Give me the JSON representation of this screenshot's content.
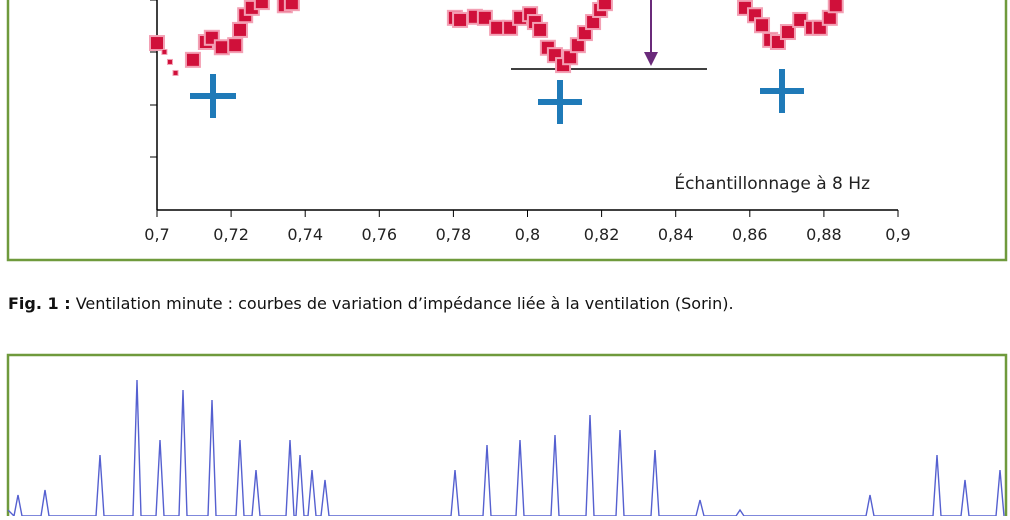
{
  "chart_data": {
    "type": "scatter",
    "annotation": "Échantillonnage à 8 Hz",
    "x": [
      0.7,
      0.702,
      0.7035,
      0.705,
      0.7097,
      0.7132,
      0.7148,
      0.7175,
      0.7211,
      0.7224,
      0.7238,
      0.7256,
      0.7283,
      0.7345,
      0.7364,
      0.7804,
      0.7818,
      0.7858,
      0.7885,
      0.7918,
      0.7953,
      0.798,
      0.8007,
      0.802,
      0.8034,
      0.8055,
      0.8074,
      0.8096,
      0.8115,
      0.8136,
      0.8155,
      0.8177,
      0.8196,
      0.8209,
      0.8587,
      0.8614,
      0.8633,
      0.8655,
      0.8676,
      0.8703,
      0.8736,
      0.8768,
      0.8789,
      0.8816,
      0.8832
    ],
    "y": [
      3.18,
      3.01,
      2.82,
      2.61,
      2.86,
      3.2,
      3.28,
      3.1,
      3.14,
      3.43,
      3.71,
      3.85,
      3.96,
      3.9,
      3.94,
      3.66,
      3.62,
      3.68,
      3.66,
      3.47,
      3.47,
      3.66,
      3.73,
      3.58,
      3.43,
      3.09,
      2.95,
      2.76,
      2.91,
      3.14,
      3.37,
      3.58,
      3.81,
      3.94,
      3.85,
      3.71,
      3.52,
      3.24,
      3.2,
      3.39,
      3.62,
      3.47,
      3.47,
      3.66,
      3.9
    ],
    "color": "#d0103a",
    "xlim": [
      0.7,
      0.9
    ],
    "ylim": [
      0,
      4
    ],
    "xticks": [
      {
        "value": 0.7,
        "label": "0,7"
      },
      {
        "value": 0.72,
        "label": "0,72"
      },
      {
        "value": 0.74,
        "label": "0,74"
      },
      {
        "value": 0.76,
        "label": "0,76"
      },
      {
        "value": 0.78,
        "label": "0,78"
      },
      {
        "value": 0.8,
        "label": "0,8"
      },
      {
        "value": 0.82,
        "label": "0,82"
      },
      {
        "value": 0.84,
        "label": "0,84"
      },
      {
        "value": 0.86,
        "label": "0,86"
      },
      {
        "value": 0.88,
        "label": "0,88"
      },
      {
        "value": 0.9,
        "label": "0,9"
      }
    ]
  },
  "caption": {
    "label": "Fig. 1 :",
    "text": "Ventilation minute : courbes de variation d’impédance liée à la ventilation (Sorin)."
  }
}
